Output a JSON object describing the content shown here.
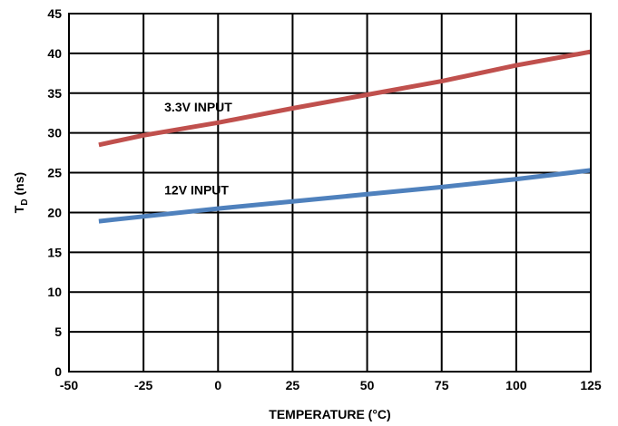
{
  "chart_data": {
    "type": "line",
    "title": "",
    "xlabel": "TEMPERATURE (°C)",
    "ylabel": {
      "main": "T",
      "sub": "D",
      "unit": " (ns)"
    },
    "xlim": [
      -50,
      125
    ],
    "ylim": [
      0,
      45
    ],
    "xticks": [
      -50,
      -25,
      0,
      25,
      50,
      75,
      100,
      125
    ],
    "yticks": [
      0,
      5,
      10,
      15,
      20,
      25,
      30,
      35,
      40,
      45
    ],
    "grid": true,
    "legend": "none",
    "series": [
      {
        "name": "3.3V INPUT",
        "color": "#c0504d",
        "x": [
          -40,
          -25,
          0,
          25,
          50,
          75,
          100,
          125
        ],
        "y": [
          28.5,
          29.7,
          31.3,
          33.1,
          34.8,
          36.5,
          38.5,
          40.2
        ]
      },
      {
        "name": "12V INPUT",
        "color": "#4f81bd",
        "x": [
          -40,
          -25,
          0,
          25,
          50,
          75,
          100,
          125
        ],
        "y": [
          18.9,
          19.5,
          20.5,
          21.4,
          22.3,
          23.2,
          24.2,
          25.3
        ]
      }
    ]
  }
}
